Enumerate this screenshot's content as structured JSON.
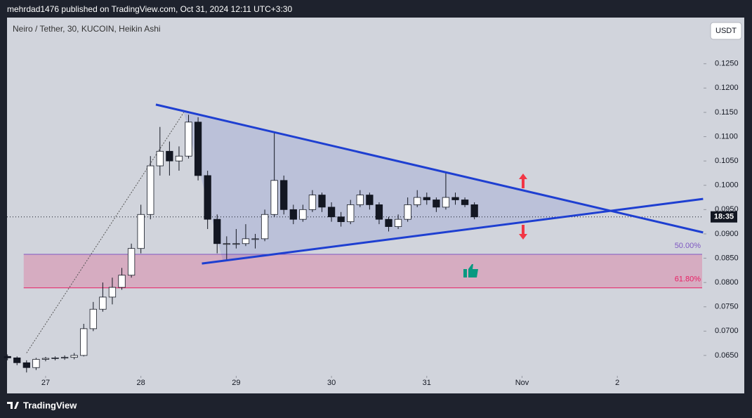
{
  "header": "mehrdad1476 published on TradingView.com, Oct 31, 2024 12:11 UTC+3:30",
  "brand": "TradingView",
  "chart_data": {
    "type": "candlestick",
    "title": "Neiro / Tether, 30, KUCOIN, Heikin Ashi",
    "currency": "USDT",
    "up_color": "#ffffff",
    "down_color": "#131722",
    "wick_color": "#131722",
    "x": [
      26.6,
      26.7,
      26.8,
      26.9,
      27.0,
      27.1,
      27.2,
      27.3,
      27.4,
      27.5,
      27.6,
      27.7,
      27.8,
      27.9,
      28.0,
      28.1,
      28.2,
      28.3,
      28.4,
      28.5,
      28.6,
      28.7,
      28.8,
      28.9,
      29.0,
      29.1,
      29.2,
      29.3,
      29.4,
      29.5,
      29.6,
      29.7,
      29.8,
      29.9,
      30.0,
      30.1,
      30.2,
      30.3,
      30.4,
      30.5,
      30.6,
      30.7,
      30.8,
      30.9,
      31.0,
      31.1,
      31.2,
      31.3,
      31.4,
      31.5
    ],
    "open": [
      0.0648,
      0.0645,
      0.0635,
      0.0625,
      0.0642,
      0.0644,
      0.0645,
      0.0646,
      0.065,
      0.0705,
      0.0745,
      0.077,
      0.079,
      0.0815,
      0.087,
      0.094,
      0.104,
      0.107,
      0.105,
      0.106,
      0.113,
      0.102,
      0.093,
      0.088,
      0.088,
      0.088,
      0.089,
      0.089,
      0.094,
      0.101,
      0.095,
      0.093,
      0.095,
      0.098,
      0.0955,
      0.0935,
      0.0925,
      0.096,
      0.098,
      0.096,
      0.093,
      0.0915,
      0.093,
      0.096,
      0.0975,
      0.097,
      0.0955,
      0.0975,
      0.097,
      0.096
    ],
    "high": [
      0.0652,
      0.0648,
      0.064,
      0.0645,
      0.0647,
      0.0648,
      0.065,
      0.0655,
      0.0715,
      0.076,
      0.08,
      0.081,
      0.083,
      0.088,
      0.096,
      0.106,
      0.112,
      0.109,
      0.108,
      0.1145,
      0.114,
      0.103,
      0.094,
      0.0895,
      0.091,
      0.092,
      0.09,
      0.095,
      0.111,
      0.102,
      0.096,
      0.096,
      0.099,
      0.0985,
      0.0965,
      0.0945,
      0.097,
      0.099,
      0.0985,
      0.0965,
      0.0935,
      0.094,
      0.0975,
      0.099,
      0.0985,
      0.0975,
      0.1025,
      0.0985,
      0.0975,
      0.0965
    ],
    "low": [
      0.064,
      0.063,
      0.0615,
      0.062,
      0.0638,
      0.064,
      0.0641,
      0.0642,
      0.0648,
      0.07,
      0.074,
      0.0755,
      0.0785,
      0.081,
      0.086,
      0.093,
      0.102,
      0.102,
      0.103,
      0.1055,
      0.101,
      0.091,
      0.086,
      0.0845,
      0.087,
      0.0875,
      0.087,
      0.0885,
      0.0935,
      0.094,
      0.092,
      0.0925,
      0.0945,
      0.0945,
      0.0925,
      0.0915,
      0.092,
      0.0955,
      0.095,
      0.092,
      0.0905,
      0.091,
      0.0925,
      0.0955,
      0.096,
      0.0945,
      0.095,
      0.096,
      0.0955,
      0.093
    ],
    "close": [
      0.0645,
      0.0635,
      0.0625,
      0.0642,
      0.0644,
      0.0645,
      0.0646,
      0.065,
      0.0705,
      0.0745,
      0.077,
      0.079,
      0.0815,
      0.087,
      0.094,
      0.104,
      0.107,
      0.105,
      0.106,
      0.113,
      0.102,
      0.093,
      0.088,
      0.088,
      0.088,
      0.089,
      0.089,
      0.094,
      0.101,
      0.095,
      0.093,
      0.095,
      0.098,
      0.0955,
      0.0935,
      0.0925,
      0.096,
      0.098,
      0.096,
      0.093,
      0.0915,
      0.093,
      0.096,
      0.0975,
      0.097,
      0.0955,
      0.0975,
      0.097,
      0.096,
      0.0935
    ],
    "xlim": [
      26.595,
      33.89
    ],
    "xticks": [
      27,
      28,
      29,
      30,
      31,
      {
        "value": 32,
        "label": "Nov"
      },
      {
        "value": 33,
        "label": "2"
      }
    ],
    "ylim": [
      0.0608,
      0.1345
    ],
    "yticks": [
      {
        "value": 0.065,
        "label": "0.0650"
      },
      {
        "value": 0.07,
        "label": "0.0700"
      },
      {
        "value": 0.075,
        "label": "0.0750"
      },
      {
        "value": 0.08,
        "label": "0.0800"
      },
      {
        "value": 0.085,
        "label": "0.0850"
      },
      {
        "value": 0.09,
        "label": "0.0900"
      },
      {
        "value": 0.095,
        "label": "0.0950"
      },
      {
        "value": 0.1,
        "label": "0.1000"
      },
      {
        "value": 0.105,
        "label": "0.1050"
      },
      {
        "value": 0.11,
        "label": "0.1100"
      },
      {
        "value": 0.115,
        "label": "0.1150"
      },
      {
        "value": 0.12,
        "label": "0.1200"
      },
      {
        "value": 0.125,
        "label": "0.1250"
      }
    ],
    "last_price": 0.0935,
    "countdown": "18:35",
    "trend_lines": [
      {
        "color": "#1e3fd1",
        "x": [
          28.157,
          33.9
        ],
        "y": [
          0.1166,
          0.0903
        ]
      },
      {
        "color": "#1e3fd1",
        "x": [
          28.64,
          33.9
        ],
        "y": [
          0.0839,
          0.0972
        ]
      }
    ],
    "triangle": {
      "color": "rgba(70,90,200,0.15)",
      "x": [
        28.45,
        28.86,
        32.9
      ],
      "y": [
        0.115,
        0.0845,
        0.095
      ]
    },
    "fib_line": {
      "x": [
        26.8,
        28.45
      ],
      "y": [
        0.0655,
        0.115
      ]
    },
    "fib_zone": {
      "x": [
        26.77,
        33.89
      ],
      "levels": [
        {
          "label": "50.00%",
          "value": 0.0858,
          "color": "#7e57c2"
        },
        {
          "label": "61.80%",
          "value": 0.0789,
          "color": "#e91e63"
        }
      ],
      "fill": "rgba(233,30,99,0.22)"
    }
  }
}
